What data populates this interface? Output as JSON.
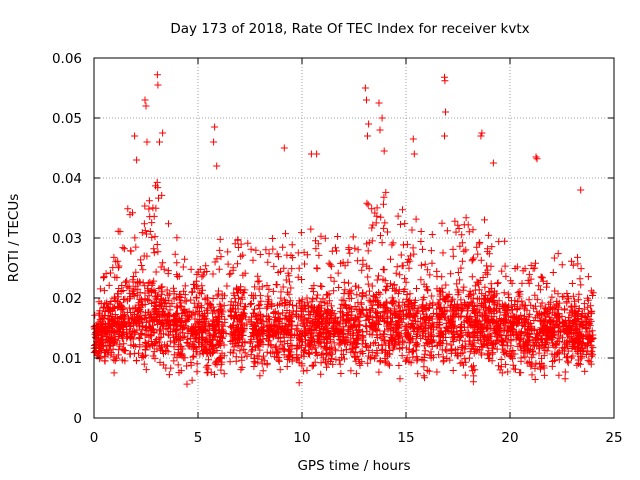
{
  "chart_data": {
    "type": "scatter",
    "title": "Day 173 of 2018, Rate Of TEC Index for receiver kvtx",
    "xlabel": "GPS time / hours",
    "ylabel": "ROTI / TECUs",
    "xlim": [
      0,
      25
    ],
    "ylim": [
      0,
      0.06
    ],
    "xticks": [
      0,
      5,
      10,
      15,
      20,
      25
    ],
    "xtick_labels": [
      "0",
      "5",
      "10",
      "15",
      "20",
      "25"
    ],
    "yticks": [
      0,
      0.01,
      0.02,
      0.03,
      0.04,
      0.05,
      0.06
    ],
    "ytick_labels": [
      "0",
      "0.01",
      "0.02",
      "0.03",
      "0.04",
      "0.05",
      "0.06"
    ],
    "grid": true,
    "marker": "+",
    "color": "#ff0000",
    "x_range_hours": [
      0,
      24
    ],
    "series": [
      {
        "name": "ROTI",
        "profile": [
          {
            "x": 0.0,
            "low": 0.009,
            "mid": 0.013,
            "high": 0.018
          },
          {
            "x": 1.0,
            "low": 0.006,
            "mid": 0.015,
            "high": 0.03
          },
          {
            "x": 2.0,
            "low": 0.005,
            "mid": 0.016,
            "high": 0.038
          },
          {
            "x": 3.0,
            "low": 0.005,
            "mid": 0.016,
            "high": 0.04
          },
          {
            "x": 4.0,
            "low": 0.005,
            "mid": 0.015,
            "high": 0.03
          },
          {
            "x": 5.0,
            "low": 0.005,
            "mid": 0.014,
            "high": 0.025
          },
          {
            "x": 6.0,
            "low": 0.005,
            "mid": 0.014,
            "high": 0.03
          },
          {
            "x": 7.0,
            "low": 0.006,
            "mid": 0.015,
            "high": 0.03
          },
          {
            "x": 8.0,
            "low": 0.005,
            "mid": 0.014,
            "high": 0.028
          },
          {
            "x": 9.0,
            "low": 0.005,
            "mid": 0.014,
            "high": 0.032
          },
          {
            "x": 10.0,
            "low": 0.005,
            "mid": 0.014,
            "high": 0.034
          },
          {
            "x": 11.0,
            "low": 0.005,
            "mid": 0.014,
            "high": 0.033
          },
          {
            "x": 12.0,
            "low": 0.005,
            "mid": 0.014,
            "high": 0.03
          },
          {
            "x": 13.0,
            "low": 0.005,
            "mid": 0.015,
            "high": 0.036
          },
          {
            "x": 14.0,
            "low": 0.005,
            "mid": 0.016,
            "high": 0.038
          },
          {
            "x": 15.0,
            "low": 0.005,
            "mid": 0.015,
            "high": 0.035
          },
          {
            "x": 16.0,
            "low": 0.005,
            "mid": 0.015,
            "high": 0.032
          },
          {
            "x": 17.0,
            "low": 0.005,
            "mid": 0.015,
            "high": 0.033
          },
          {
            "x": 18.0,
            "low": 0.005,
            "mid": 0.015,
            "high": 0.034
          },
          {
            "x": 19.0,
            "low": 0.005,
            "mid": 0.015,
            "high": 0.033
          },
          {
            "x": 20.0,
            "low": 0.005,
            "mid": 0.014,
            "high": 0.03
          },
          {
            "x": 21.0,
            "low": 0.005,
            "mid": 0.014,
            "high": 0.026
          },
          {
            "x": 22.0,
            "low": 0.005,
            "mid": 0.014,
            "high": 0.027
          },
          {
            "x": 23.0,
            "low": 0.005,
            "mid": 0.014,
            "high": 0.03
          },
          {
            "x": 24.0,
            "low": 0.007,
            "mid": 0.013,
            "high": 0.022
          }
        ],
        "gaps": [
          [
            3.7,
            3.8
          ],
          [
            4.55,
            4.65
          ],
          [
            6.3,
            6.55
          ],
          [
            7.35,
            7.5
          ],
          [
            8.15,
            8.3
          ],
          [
            9.55,
            9.7
          ],
          [
            12.95,
            13.05
          ],
          [
            15.6,
            15.7
          ],
          [
            16.35,
            16.45
          ],
          [
            22.4,
            22.5
          ]
        ],
        "peaks": [
          {
            "x": 1.95,
            "y": 0.047
          },
          {
            "x": 2.05,
            "y": 0.043
          },
          {
            "x": 2.45,
            "y": 0.053
          },
          {
            "x": 2.5,
            "y": 0.052
          },
          {
            "x": 2.55,
            "y": 0.046
          },
          {
            "x": 3.05,
            "y": 0.0572
          },
          {
            "x": 3.07,
            "y": 0.0555
          },
          {
            "x": 3.15,
            "y": 0.046
          },
          {
            "x": 3.3,
            "y": 0.0475
          },
          {
            "x": 5.8,
            "y": 0.0485
          },
          {
            "x": 5.75,
            "y": 0.046
          },
          {
            "x": 5.9,
            "y": 0.042
          },
          {
            "x": 9.15,
            "y": 0.045
          },
          {
            "x": 10.45,
            "y": 0.044
          },
          {
            "x": 10.7,
            "y": 0.044
          },
          {
            "x": 13.05,
            "y": 0.055
          },
          {
            "x": 13.1,
            "y": 0.053
          },
          {
            "x": 13.2,
            "y": 0.049
          },
          {
            "x": 13.15,
            "y": 0.047
          },
          {
            "x": 13.7,
            "y": 0.0525
          },
          {
            "x": 13.85,
            "y": 0.05
          },
          {
            "x": 13.75,
            "y": 0.048
          },
          {
            "x": 13.95,
            "y": 0.0445
          },
          {
            "x": 15.35,
            "y": 0.0465
          },
          {
            "x": 15.4,
            "y": 0.044
          },
          {
            "x": 16.85,
            "y": 0.0568
          },
          {
            "x": 16.87,
            "y": 0.0562
          },
          {
            "x": 16.9,
            "y": 0.051
          },
          {
            "x": 16.85,
            "y": 0.047
          },
          {
            "x": 18.65,
            "y": 0.0475
          },
          {
            "x": 18.6,
            "y": 0.047
          },
          {
            "x": 19.2,
            "y": 0.0425
          },
          {
            "x": 21.25,
            "y": 0.0435
          },
          {
            "x": 21.3,
            "y": 0.0432
          },
          {
            "x": 23.4,
            "y": 0.038
          }
        ]
      }
    ]
  }
}
